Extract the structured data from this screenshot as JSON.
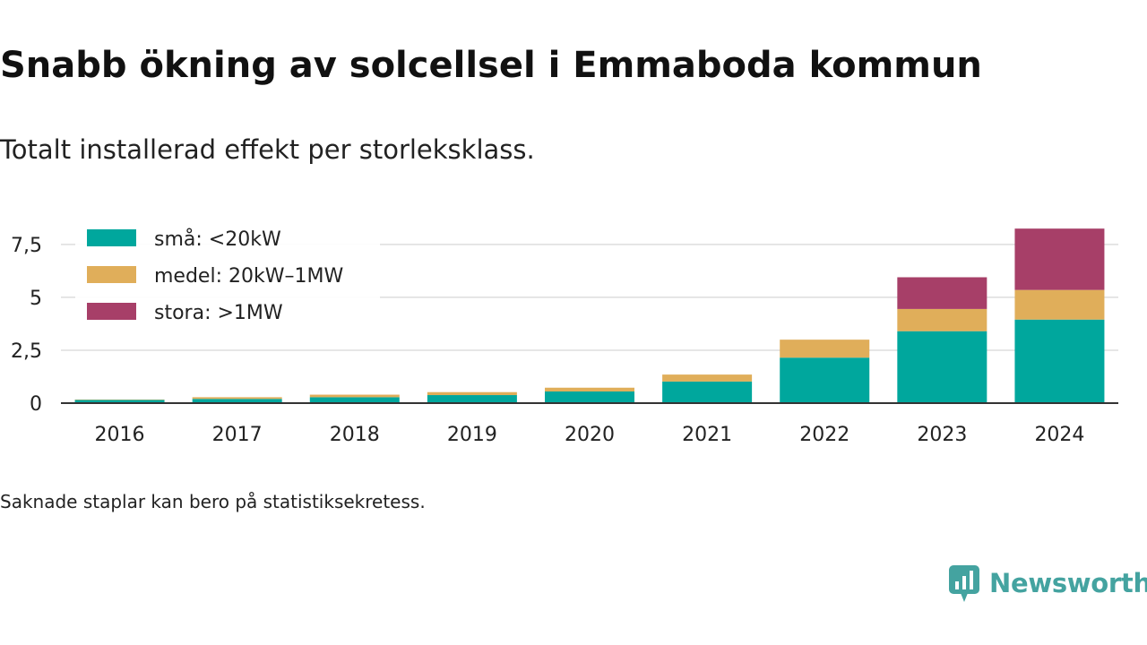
{
  "title": "Snabb ökning av solcellsel i Emmaboda kommun",
  "subtitle": "Totalt installerad effekt per storleksklass.",
  "footnote": "Saknade staplar kan bero på statistiksekretess.",
  "brand": {
    "name": "Newsworthy",
    "icon": "newsworthy-logo-icon",
    "color": "#44a3a0"
  },
  "chart_data": {
    "type": "bar",
    "stacked": true,
    "categories": [
      "2016",
      "2017",
      "2018",
      "2019",
      "2020",
      "2021",
      "2022",
      "2023",
      "2024"
    ],
    "series": [
      {
        "name": "små: <20kW",
        "color": "#00a79d",
        "values": [
          0.15,
          0.2,
          0.28,
          0.38,
          0.55,
          1.02,
          2.15,
          3.4,
          3.95
        ]
      },
      {
        "name": "medel: 20kW–1MW",
        "color": "#e0ae5a",
        "values": [
          0.02,
          0.08,
          0.12,
          0.14,
          0.18,
          0.33,
          0.85,
          1.05,
          1.4
        ]
      },
      {
        "name": "stora: >1MW",
        "color": "#a73f68",
        "values": [
          0,
          0,
          0,
          0,
          0,
          0,
          0,
          1.5,
          2.9
        ]
      }
    ],
    "y_ticks": [
      "0",
      "2,5",
      "5",
      "7,5"
    ],
    "y_tick_values": [
      0,
      2.5,
      5,
      7.5
    ],
    "ylim": [
      0,
      8.3
    ],
    "grid": "horizontal",
    "legend": "top-left"
  }
}
